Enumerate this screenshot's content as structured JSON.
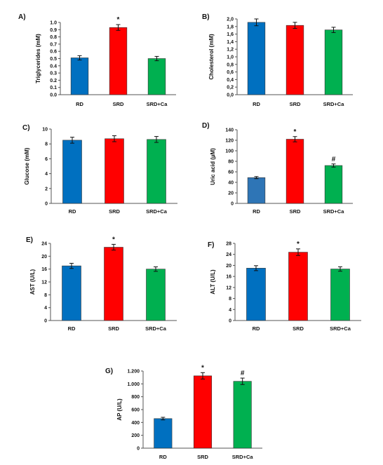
{
  "colors": {
    "RD": "#0070C0",
    "RD_D": "#2E75B6",
    "SRD": "#FF0000",
    "SRD_Ca": "#00B050"
  },
  "chart_data": [
    {
      "id": "A",
      "letter": "A)",
      "type": "bar",
      "ylabel": "Triglycerides (mM)",
      "categories": [
        "RD",
        "SRD",
        "SRD+Ca"
      ],
      "values": [
        0.51,
        0.93,
        0.5
      ],
      "errors": [
        0.03,
        0.04,
        0.03
      ],
      "significance": [
        "",
        "*",
        ""
      ],
      "ylim": [
        0,
        1.0
      ],
      "ticks": [
        "0.0",
        "0.1",
        "0.2",
        "0.3",
        "0.4",
        "0.5",
        "0.6",
        "0.7",
        "0.8",
        "0.9",
        "1.0"
      ]
    },
    {
      "id": "B",
      "letter": "B)",
      "type": "bar",
      "ylabel": "Cholesterol (mM)",
      "categories": [
        "RD",
        "SRD",
        "SRD+Ca"
      ],
      "values": [
        1.91,
        1.83,
        1.71
      ],
      "errors": [
        0.09,
        0.08,
        0.07
      ],
      "significance": [
        "",
        "",
        ""
      ],
      "ylim": [
        0,
        2.0
      ],
      "ticks": [
        "0,0",
        "0,2",
        "0,4",
        "0,6",
        "0,8",
        "1,0",
        "1,2",
        "1,4",
        "1,6",
        "1,8",
        "2,0"
      ]
    },
    {
      "id": "C",
      "letter": "C)",
      "type": "bar",
      "ylabel": "Glucose (mM)",
      "categories": [
        "RD",
        "SRD",
        "SRD+Ca"
      ],
      "values": [
        8.5,
        8.7,
        8.6
      ],
      "errors": [
        0.4,
        0.4,
        0.4
      ],
      "significance": [
        "",
        "",
        ""
      ],
      "ylim": [
        0,
        10
      ],
      "ticks": [
        "0",
        "2",
        "4",
        "6",
        "8",
        "10"
      ]
    },
    {
      "id": "D",
      "letter": "D)",
      "type": "bar",
      "ylabel": "Uric acid (µM)",
      "categories": [
        "RD",
        "SRD",
        "SRD+Ca"
      ],
      "values": [
        49,
        122,
        72
      ],
      "errors": [
        2,
        5,
        3
      ],
      "significance": [
        "",
        "*",
        "#"
      ],
      "ylim": [
        0,
        140
      ],
      "ticks": [
        "0",
        "20",
        "40",
        "60",
        "80",
        "100",
        "120",
        "140"
      ]
    },
    {
      "id": "E",
      "letter": "E)",
      "type": "bar",
      "ylabel": "AST (U/L)",
      "categories": [
        "RD",
        "SRD",
        "SRD+Ca"
      ],
      "values": [
        17.0,
        22.8,
        16.0
      ],
      "errors": [
        0.8,
        0.9,
        0.7
      ],
      "significance": [
        "",
        "*",
        ""
      ],
      "ylim": [
        0,
        24
      ],
      "ticks": [
        "0",
        "4",
        "8",
        "12",
        "16",
        "20",
        "24"
      ]
    },
    {
      "id": "F",
      "letter": "F)",
      "type": "bar",
      "ylabel": "ALT (U/L)",
      "categories": [
        "RD",
        "SRD",
        "SRD+Ca"
      ],
      "values": [
        19.0,
        24.8,
        18.7
      ],
      "errors": [
        0.9,
        1.2,
        0.8
      ],
      "significance": [
        "",
        "*",
        ""
      ],
      "ylim": [
        0,
        28
      ],
      "ticks": [
        "0",
        "4",
        "8",
        "12",
        "16",
        "20",
        "24",
        "28"
      ]
    },
    {
      "id": "G",
      "letter": "G)",
      "type": "bar",
      "ylabel": "AP (U/L)",
      "categories": [
        "RD",
        "SRD",
        "SRD+Ca"
      ],
      "values": [
        460,
        1125,
        1040
      ],
      "errors": [
        20,
        50,
        50
      ],
      "significance": [
        "",
        "*",
        "#"
      ],
      "ylim": [
        0,
        1200
      ],
      "ticks": [
        "0",
        "200",
        "400",
        "600",
        "800",
        "1.000",
        "1.200"
      ]
    }
  ]
}
